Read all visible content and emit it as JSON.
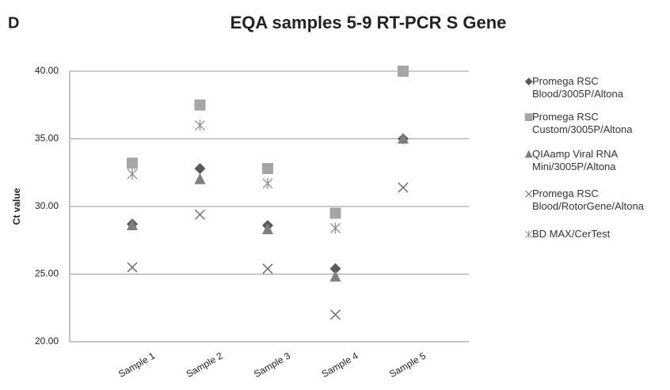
{
  "panel_label": "D",
  "chart_data": {
    "type": "scatter",
    "title": "EQA samples 5-9 RT-PCR S Gene",
    "y_label": "Ct value",
    "categories": [
      "Sample 1",
      "Sample 2",
      "Sample 3",
      "Sample 4",
      "Sample 5"
    ],
    "ylim": [
      20,
      40
    ],
    "yticks": [
      {
        "value": 20,
        "label": "20.00"
      },
      {
        "value": 25,
        "label": "25.00"
      },
      {
        "value": 30,
        "label": "30.00"
      },
      {
        "value": 35,
        "label": "35.00"
      },
      {
        "value": 40,
        "label": "40.00"
      }
    ],
    "grid": true,
    "legend": "right",
    "series": [
      {
        "name": "Promega RSC Blood/3005P/Altona",
        "color": "#595959",
        "marker": "diamond",
        "values": [
          28.7,
          32.8,
          28.6,
          25.4,
          35.0
        ]
      },
      {
        "name": "Promega RSC Custom/3005P/Altona",
        "color": "#a6a6a6",
        "marker": "square",
        "values": [
          33.2,
          37.5,
          32.8,
          29.5,
          40.0
        ]
      },
      {
        "name": "QIAamp Viral RNA Mini/3005P/Altona",
        "color": "#7f7f7f",
        "marker": "triangle",
        "values": [
          28.6,
          32.0,
          28.3,
          24.8,
          35.0
        ]
      },
      {
        "name": "Promega RSC Blood/RotorGene/Altona",
        "color": "#6e6e6e",
        "marker": "x",
        "values": [
          25.5,
          29.4,
          25.4,
          22.0,
          31.4
        ]
      },
      {
        "name": "BD MAX/CerTest",
        "color": "#8c8c8c",
        "marker": "asterisk",
        "values": [
          32.4,
          36.0,
          31.7,
          28.4,
          null
        ]
      }
    ]
  }
}
